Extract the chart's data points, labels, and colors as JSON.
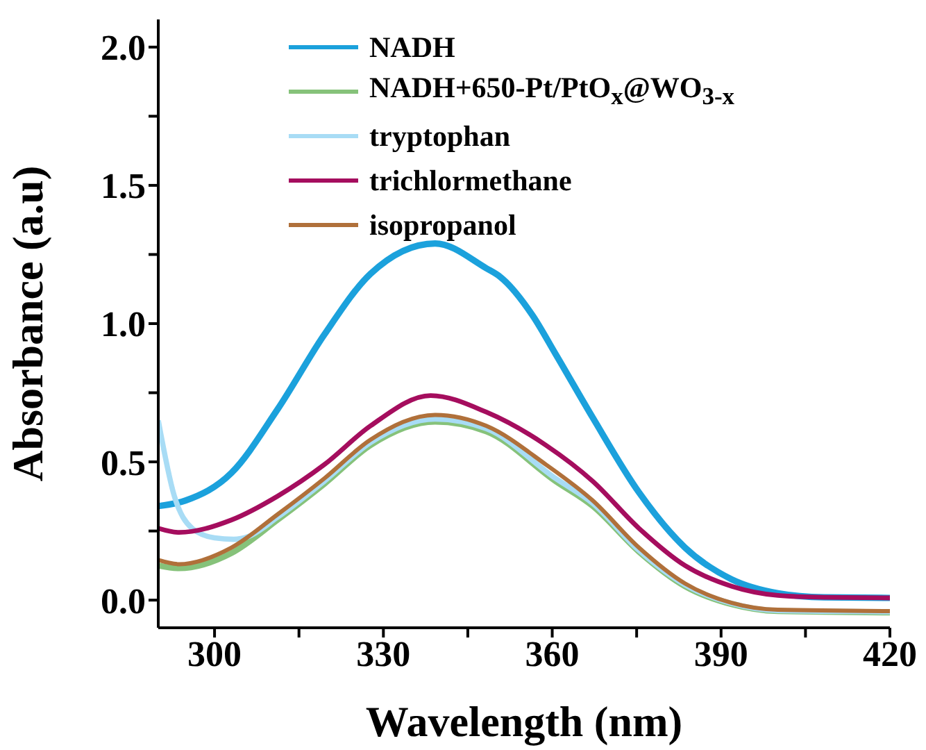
{
  "chart_data": {
    "type": "line",
    "xlabel": "Wavelength (nm)",
    "ylabel": "Absorbance (a.u)",
    "xlim": [
      290,
      420
    ],
    "ylim": [
      -0.1,
      2.1
    ],
    "xticks": [
      300,
      {
        "value": 315,
        "label": null
      },
      330,
      {
        "value": 345,
        "label": null
      },
      360,
      {
        "value": 375,
        "label": null
      },
      390,
      {
        "value": 405,
        "label": null
      },
      420
    ],
    "yticks": [
      {
        "value": 0,
        "label": "0.0"
      },
      {
        "value": 0.25,
        "label": null
      },
      {
        "value": 0.5,
        "label": "0.5"
      },
      {
        "value": 0.75,
        "label": null
      },
      {
        "value": 1,
        "label": "1.0"
      },
      {
        "value": 1.25,
        "label": null
      },
      {
        "value": 1.5,
        "label": "1.5"
      },
      {
        "value": 1.75,
        "label": null
      },
      {
        "value": 2,
        "label": "2.0"
      }
    ],
    "grid": false,
    "legend": "top",
    "marker": "none",
    "line_style": "solid",
    "series": [
      {
        "name": "NADH",
        "color": "#1ba1dc",
        "x": [
          290,
          294.8,
          303,
          311.2,
          319.5,
          327.7,
          339.2,
          348.3,
          350.7,
          356.5,
          360.6,
          367.2,
          375.4,
          383.6,
          391.9,
          400.1,
          408.3,
          420
        ],
        "values": [
          0.34,
          0.36,
          0.46,
          0.69,
          0.96,
          1.18,
          1.29,
          1.2,
          1.17,
          1.03,
          0.89,
          0.66,
          0.39,
          0.19,
          0.075,
          0.025,
          0.01,
          0.008
        ]
      },
      {
        "name": "NADH+650-Pt/PtO$_{x}$@WO$_{3-x}$",
        "color": "#86c27a",
        "x": [
          290,
          293.7,
          303,
          311.2,
          319.5,
          327.7,
          339.2,
          348.3,
          360.6,
          367.2,
          375.4,
          383.6,
          391.9,
          400.1,
          420
        ],
        "values": [
          0.125,
          0.115,
          0.17,
          0.29,
          0.42,
          0.56,
          0.645,
          0.61,
          0.43,
          0.34,
          0.175,
          0.05,
          -0.015,
          -0.04,
          -0.045
        ]
      },
      {
        "name": "tryptophan",
        "color": "#a8dcf5",
        "x": [
          290,
          292.8,
          296,
          300,
          303.4,
          306,
          311.2,
          319.5,
          327.7,
          339.2,
          348.3,
          360.6,
          367.2,
          375.4,
          383.6,
          391.9,
          400.1,
          420
        ],
        "values": [
          0.65,
          0.38,
          0.26,
          0.225,
          0.22,
          0.23,
          0.3,
          0.43,
          0.57,
          0.655,
          0.62,
          0.44,
          0.35,
          0.18,
          0.055,
          -0.012,
          -0.038,
          -0.042
        ]
      },
      {
        "name": "trichlormethane",
        "color": "#a50d5e",
        "x": [
          290,
          293.7,
          303,
          311.2,
          319.5,
          327.7,
          338.4,
          348.3,
          358.9,
          367.2,
          375.4,
          383.6,
          391.9,
          400.1,
          408.3,
          420
        ],
        "values": [
          0.26,
          0.245,
          0.29,
          0.376,
          0.49,
          0.63,
          0.74,
          0.68,
          0.56,
          0.43,
          0.26,
          0.125,
          0.05,
          0.017,
          0.01,
          0.008
        ]
      },
      {
        "name": "isopropanol",
        "color": "#b0703a",
        "x": [
          290,
          293.7,
          303,
          311.2,
          319.5,
          327.7,
          339.2,
          348.3,
          358.9,
          367.2,
          375.4,
          383.6,
          391.9,
          400.1,
          420
        ],
        "values": [
          0.145,
          0.13,
          0.19,
          0.31,
          0.44,
          0.58,
          0.67,
          0.63,
          0.49,
          0.36,
          0.19,
          0.06,
          -0.01,
          -0.035,
          -0.04
        ]
      }
    ]
  }
}
